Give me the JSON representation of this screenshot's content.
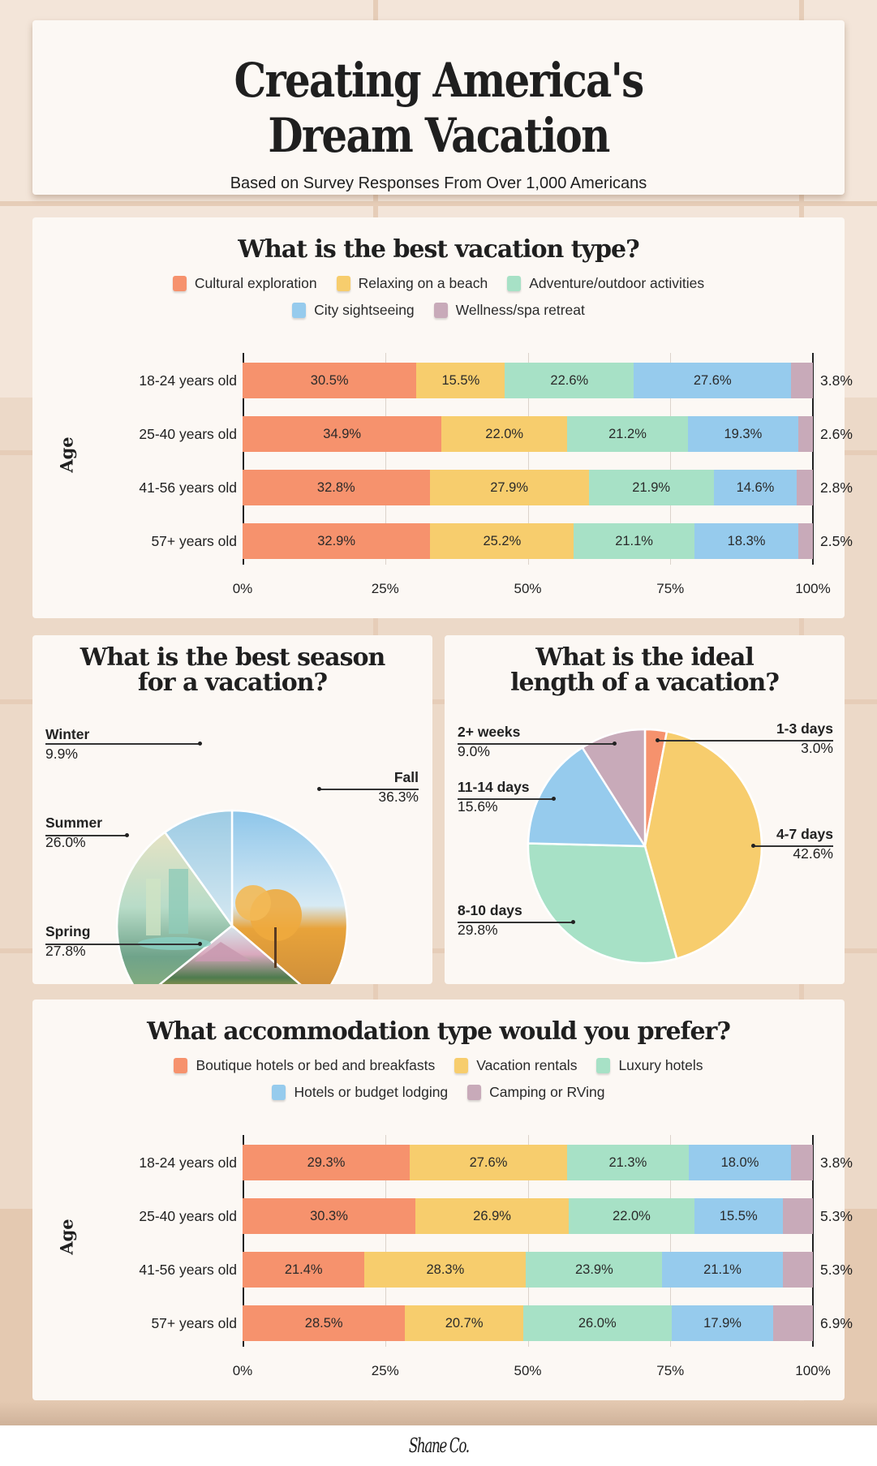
{
  "header": {
    "title_line1": "Creating America's",
    "title_line2": "Dream Vacation",
    "subtitle": "Based on Survey Responses From Over 1,000 Americans"
  },
  "colors": {
    "orange": "#f6926d",
    "yellow": "#f7cd6d",
    "green": "#a7e1c6",
    "blue": "#96cbed",
    "mauve": "#c8aab9",
    "card_bg": "#fcf8f4",
    "page_bg": "#f3e5d9"
  },
  "vacation_type": {
    "title": "What is the best vacation type?",
    "y_axis_title": "Age",
    "legend": [
      {
        "label": "Cultural exploration",
        "color": "#f6926d"
      },
      {
        "label": "Relaxing on a beach",
        "color": "#f7cd6d"
      },
      {
        "label": "Adventure/outdoor activities",
        "color": "#a7e1c6"
      },
      {
        "label": "City sightseeing",
        "color": "#96cbed"
      },
      {
        "label": "Wellness/spa retreat",
        "color": "#c8aab9"
      }
    ],
    "rows": [
      {
        "label": "18-24 years old",
        "values": [
          "30.5%",
          "15.5%",
          "22.6%",
          "27.6%"
        ],
        "end": "3.8%"
      },
      {
        "label": "25-40 years old",
        "values": [
          "34.9%",
          "22.0%",
          "21.2%",
          "19.3%"
        ],
        "end": "2.6%"
      },
      {
        "label": "41-56 years old",
        "values": [
          "32.8%",
          "27.9%",
          "21.9%",
          "14.6%"
        ],
        "end": "2.8%"
      },
      {
        "label": "57+ years old",
        "values": [
          "32.9%",
          "25.2%",
          "21.1%",
          "18.3%"
        ],
        "end": "2.5%"
      }
    ],
    "ticks": [
      "0%",
      "25%",
      "50%",
      "75%",
      "100%"
    ]
  },
  "season": {
    "title_line1": "What is the best season",
    "title_line2": "for a vacation?",
    "slices": [
      {
        "name": "Winter",
        "value": "9.9%"
      },
      {
        "name": "Fall",
        "value": "36.3%"
      },
      {
        "name": "Summer",
        "value": "26.0%"
      },
      {
        "name": "Spring",
        "value": "27.8%"
      }
    ]
  },
  "length": {
    "title_line1": "What is the ideal",
    "title_line2": "length of a vacation?",
    "slices": [
      {
        "name": "2+ weeks",
        "value": "9.0%"
      },
      {
        "name": "1-3 days",
        "value": "3.0%"
      },
      {
        "name": "11-14 days",
        "value": "15.6%"
      },
      {
        "name": "4-7 days",
        "value": "42.6%"
      },
      {
        "name": "8-10 days",
        "value": "29.8%"
      }
    ]
  },
  "accommodation": {
    "title": "What accommodation type would you prefer?",
    "y_axis_title": "Age",
    "legend": [
      {
        "label": "Boutique hotels or bed and breakfasts",
        "color": "#f6926d"
      },
      {
        "label": "Vacation rentals",
        "color": "#f7cd6d"
      },
      {
        "label": "Luxury hotels",
        "color": "#a7e1c6"
      },
      {
        "label": "Hotels or budget lodging",
        "color": "#96cbed"
      },
      {
        "label": "Camping or RVing",
        "color": "#c8aab9"
      }
    ],
    "rows": [
      {
        "label": "18-24 years old",
        "values": [
          "29.3%",
          "27.6%",
          "21.3%",
          "18.0%"
        ],
        "end": "3.8%"
      },
      {
        "label": "25-40 years old",
        "values": [
          "30.3%",
          "26.9%",
          "22.0%",
          "15.5%"
        ],
        "end": "5.3%"
      },
      {
        "label": "41-56 years old",
        "values": [
          "21.4%",
          "28.3%",
          "23.9%",
          "21.1%"
        ],
        "end": "5.3%"
      },
      {
        "label": "57+ years old",
        "values": [
          "28.5%",
          "20.7%",
          "26.0%",
          "17.9%"
        ],
        "end": "6.9%"
      }
    ],
    "ticks": [
      "0%",
      "25%",
      "50%",
      "75%",
      "100%"
    ]
  },
  "footer": {
    "logo": "Shane Co."
  },
  "chart_data": [
    {
      "type": "bar",
      "orientation": "horizontal-stacked",
      "title": "What is the best vacation type?",
      "ylabel": "Age",
      "categories": [
        "18-24 years old",
        "25-40 years old",
        "41-56 years old",
        "57+ years old"
      ],
      "series": [
        {
          "name": "Cultural exploration",
          "values": [
            30.5,
            34.9,
            32.8,
            32.9
          ]
        },
        {
          "name": "Relaxing on a beach",
          "values": [
            15.5,
            22.0,
            27.9,
            25.2
          ]
        },
        {
          "name": "Adventure/outdoor activities",
          "values": [
            22.6,
            21.2,
            21.9,
            21.1
          ]
        },
        {
          "name": "City sightseeing",
          "values": [
            27.6,
            19.3,
            14.6,
            18.3
          ]
        },
        {
          "name": "Wellness/spa retreat",
          "values": [
            3.8,
            2.6,
            2.8,
            2.5
          ]
        }
      ],
      "xlim": [
        0,
        100
      ],
      "xticks": [
        "0%",
        "25%",
        "50%",
        "75%",
        "100%"
      ],
      "grid": true,
      "legend_position": "top"
    },
    {
      "type": "pie",
      "title": "What is the best season for a vacation?",
      "labels": [
        "Fall",
        "Spring",
        "Summer",
        "Winter"
      ],
      "values": [
        36.3,
        27.8,
        26.0,
        9.9
      ]
    },
    {
      "type": "pie",
      "title": "What is the ideal length of a vacation?",
      "labels": [
        "1-3 days",
        "4-7 days",
        "8-10 days",
        "11-14 days",
        "2+ weeks"
      ],
      "values": [
        3.0,
        42.6,
        29.8,
        15.6,
        9.0
      ]
    },
    {
      "type": "bar",
      "orientation": "horizontal-stacked",
      "title": "What accommodation type would you prefer?",
      "ylabel": "Age",
      "categories": [
        "18-24 years old",
        "25-40 years old",
        "41-56 years old",
        "57+ years old"
      ],
      "series": [
        {
          "name": "Boutique hotels or bed and breakfasts",
          "values": [
            29.3,
            30.3,
            21.4,
            28.5
          ]
        },
        {
          "name": "Vacation rentals",
          "values": [
            27.6,
            26.9,
            28.3,
            20.7
          ]
        },
        {
          "name": "Luxury hotels",
          "values": [
            21.3,
            22.0,
            23.9,
            26.0
          ]
        },
        {
          "name": "Hotels or budget lodging",
          "values": [
            18.0,
            15.5,
            21.1,
            17.9
          ]
        },
        {
          "name": "Camping or RVing",
          "values": [
            3.8,
            5.3,
            5.3,
            6.9
          ]
        }
      ],
      "xlim": [
        0,
        100
      ],
      "xticks": [
        "0%",
        "25%",
        "50%",
        "75%",
        "100%"
      ],
      "grid": true,
      "legend_position": "top"
    }
  ]
}
